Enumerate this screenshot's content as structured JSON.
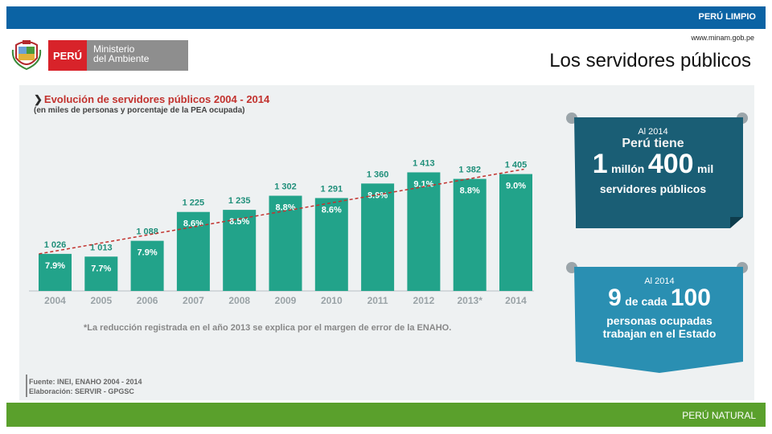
{
  "header": {
    "slogan": "PERÚ LIMPIO",
    "website": "www.minam.gob.pe",
    "title": "Los servidores públicos"
  },
  "logo": {
    "country": "PERÚ",
    "ministry_line1": "Ministerio",
    "ministry_line2": "del Ambiente"
  },
  "footer": {
    "slogan": "PERÚ NATURAL"
  },
  "chart_data": {
    "type": "bar",
    "title": "Evolución de servidores públicos 2004 - 2014",
    "subtitle": "(en miles de personas y porcentaje de la PEA ocupada)",
    "categories": [
      "2004",
      "2005",
      "2006",
      "2007",
      "2008",
      "2009",
      "2010",
      "2011",
      "2012",
      "2013*",
      "2014"
    ],
    "value_labels": [
      "1 026",
      "1 013",
      "1 088",
      "1 225",
      "1 235",
      "1 302",
      "1 291",
      "1 360",
      "1 413",
      "1 382",
      "1 405"
    ],
    "values": [
      1026,
      1013,
      1088,
      1225,
      1235,
      1302,
      1291,
      1360,
      1413,
      1382,
      1405
    ],
    "percent_labels": [
      "7.9%",
      "7.7%",
      "7.9%",
      "8.6%",
      "8.5%",
      "8.8%",
      "8.6%",
      "8.9%",
      "9.1%",
      "8.8%",
      "9.0%"
    ],
    "bar_color": "#22a38a",
    "trend_color": "#c2322e",
    "note": "*La reducción registrada en el año 2013 se explica por el margen de error de la ENAHO.",
    "source": "Fuente: INEI, ENAHO 2004 - 2014",
    "elaboration": "Elaboración: SERVIR - GPGSC"
  },
  "callouts": [
    {
      "line1": "Al 2014",
      "line2": "Perú tiene",
      "big1": "1",
      "small1": "millón",
      "big2": "400",
      "small2": "mil",
      "line3": "servidores públicos",
      "color": "#1a5e75"
    },
    {
      "line1": "Al 2014",
      "big1": "9",
      "small1": "de cada",
      "big2": "100",
      "line2": "personas ocupadas",
      "line3": "trabajan en el Estado",
      "color": "#2a8fb2"
    }
  ]
}
